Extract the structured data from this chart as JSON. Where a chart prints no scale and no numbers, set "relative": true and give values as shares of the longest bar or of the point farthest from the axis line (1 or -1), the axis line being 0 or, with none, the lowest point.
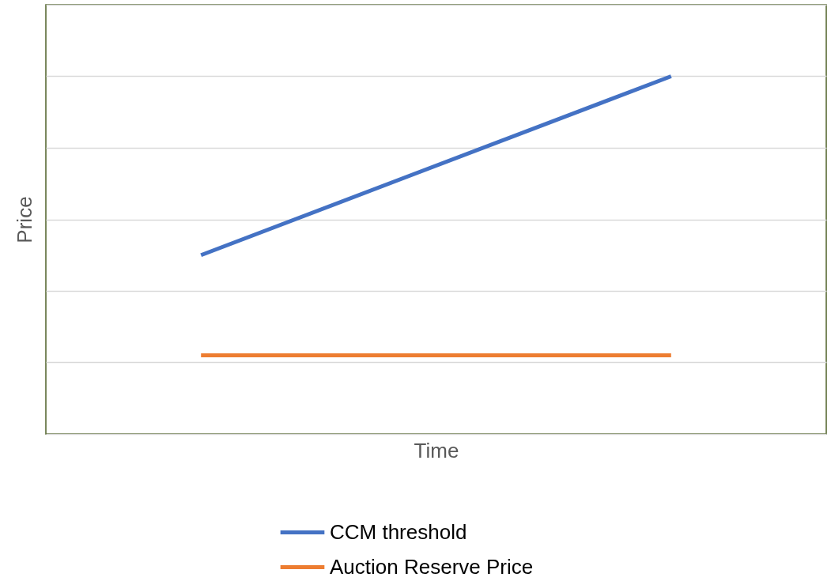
{
  "chart_data": {
    "type": "line",
    "relative": true,
    "xlabel": "Time",
    "ylabel": "Price",
    "categories": [
      null,
      null
    ],
    "series": [
      {
        "name": "CCM threshold",
        "color": "#4472c4",
        "values": [
          0.5,
          1
        ]
      },
      {
        "name": "Auction Reserve Price",
        "color": "#ed7d31",
        "values": [
          0.22,
          0.22
        ]
      }
    ],
    "grid": "y",
    "legend": "bottom",
    "marker": "none",
    "line_style": "solid"
  }
}
